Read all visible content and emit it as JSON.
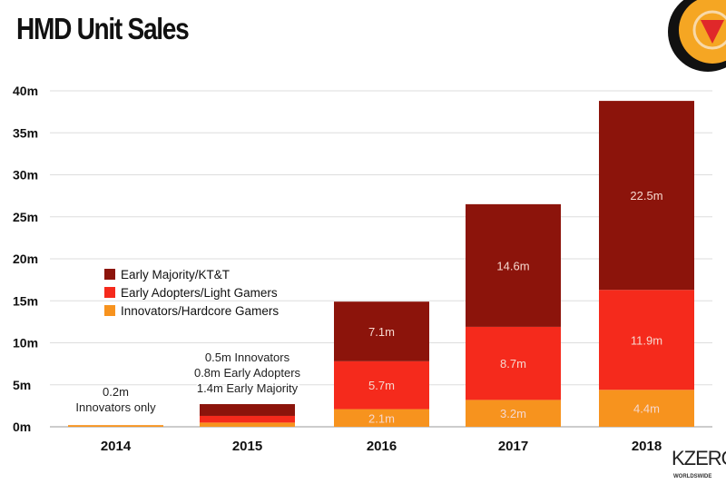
{
  "chart_data": {
    "type": "bar",
    "stacked": true,
    "title": "HMD Unit Sales",
    "categories": [
      "2014",
      "2015",
      "2016",
      "2017",
      "2018"
    ],
    "series": [
      {
        "name": "Innovators/Hardcore Gamers",
        "color": "#f7931e",
        "values": [
          0.2,
          0.5,
          2.1,
          3.2,
          4.4
        ],
        "labels": [
          "",
          "",
          "2.1m",
          "3.2m",
          "4.4m"
        ]
      },
      {
        "name": "Early Adopters/Light Gamers",
        "color": "#f52a1c",
        "values": [
          0,
          0.8,
          5.7,
          8.7,
          11.9
        ],
        "labels": [
          "",
          "",
          "5.7m",
          "8.7m",
          "11.9m"
        ]
      },
      {
        "name": "Early Majority/KT&T",
        "color": "#8c140b",
        "values": [
          0,
          1.4,
          7.1,
          14.6,
          22.5
        ],
        "labels": [
          "",
          "",
          "7.1m",
          "14.6m",
          "22.5m"
        ]
      }
    ],
    "yticks": [
      "0m",
      "5m",
      "10m",
      "15m",
      "20m",
      "25m",
      "30m",
      "35m",
      "40m"
    ],
    "ylim": [
      0,
      40
    ],
    "grid": true,
    "legend_position": "left-middle",
    "annotations": [
      {
        "category": "2014",
        "lines": [
          "0.2m",
          "Innovators only"
        ]
      },
      {
        "category": "2015",
        "lines": [
          "0.5m Innovators",
          "0.8m Early Adopters",
          "1.4m Early Majority"
        ]
      }
    ]
  },
  "branding": {
    "logo_text": "KZERO",
    "logo_sub": "WORLDSWIDE"
  }
}
